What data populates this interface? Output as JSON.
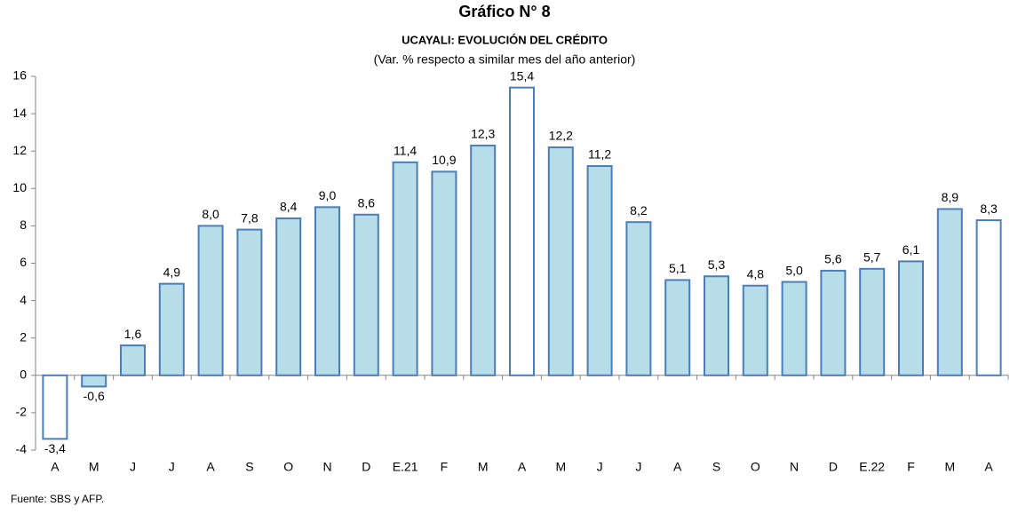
{
  "chart_data": {
    "type": "bar",
    "title": "Gráfico N° 8",
    "subtitle": "UCAYALI: EVOLUCIÓN DEL CRÉDITO",
    "note": "(Var. % respecto a similar mes del año anterior)",
    "source": "Fuente: SBS y AFP.",
    "categories": [
      "A",
      "M",
      "J",
      "J",
      "A",
      "S",
      "O",
      "N",
      "D",
      "E.21",
      "F",
      "M",
      "A",
      "M",
      "J",
      "J",
      "A",
      "S",
      "O",
      "N",
      "D",
      "E.22",
      "F",
      "M",
      "A"
    ],
    "values": [
      -3.4,
      -0.6,
      1.6,
      4.9,
      8.0,
      7.8,
      8.4,
      9.0,
      8.6,
      11.4,
      10.9,
      12.3,
      15.4,
      12.2,
      11.2,
      8.2,
      5.1,
      5.3,
      4.8,
      5.0,
      5.6,
      5.7,
      6.1,
      8.9,
      8.3
    ],
    "value_labels": [
      "-3,4",
      "-0,6",
      "1,6",
      "4,9",
      "8,0",
      "7,8",
      "8,4",
      "9,0",
      "8,6",
      "11,4",
      "10,9",
      "12,3",
      "15,4",
      "12,2",
      "11,2",
      "8,2",
      "5,1",
      "5,3",
      "4,8",
      "5,0",
      "5,6",
      "5,7",
      "6,1",
      "8,9",
      "8,3"
    ],
    "colors": [
      "#ffffff",
      "#b7dde8",
      "#b7dde8",
      "#b7dde8",
      "#b7dde8",
      "#b7dde8",
      "#b7dde8",
      "#b7dde8",
      "#b7dde8",
      "#b7dde8",
      "#b7dde8",
      "#b7dde8",
      "#ffffff",
      "#b7dde8",
      "#b7dde8",
      "#b7dde8",
      "#b7dde8",
      "#b7dde8",
      "#b7dde8",
      "#b7dde8",
      "#b7dde8",
      "#b7dde8",
      "#b7dde8",
      "#b7dde8",
      "#ffffff"
    ],
    "edge_color": "#4a7ebb",
    "ylim": [
      -4,
      16
    ],
    "yticks": [
      -4,
      -2,
      0,
      2,
      4,
      6,
      8,
      10,
      12,
      14,
      16
    ],
    "grid": false
  }
}
